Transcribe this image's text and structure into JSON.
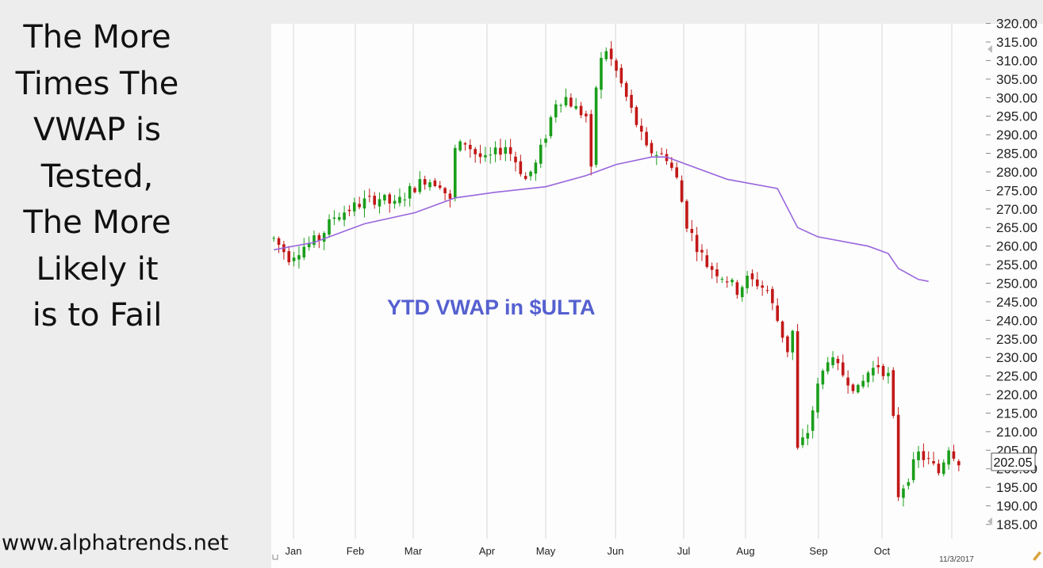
{
  "sidebar": {
    "headline_lines": [
      "The More",
      "Times The",
      "VWAP is",
      "Tested,",
      "The More",
      "Likely it",
      "is to Fail"
    ],
    "website": "www.alphatrends.net"
  },
  "chart_data": {
    "type": "candlestick",
    "annotation": "YTD VWAP in $ULTA",
    "ylim": [
      185,
      320
    ],
    "y_ticks": [
      185,
      190,
      195,
      200,
      205,
      210,
      215,
      220,
      225,
      230,
      235,
      240,
      245,
      250,
      255,
      260,
      265,
      270,
      275,
      280,
      285,
      290,
      295,
      300,
      305,
      310,
      315,
      320
    ],
    "x_labels": [
      "Jan",
      "Feb",
      "Mar",
      "Apr",
      "May",
      "Jun",
      "Jul",
      "Aug",
      "Sep",
      "Oct"
    ],
    "date_label": "11/3/2017",
    "last_price": "202.05",
    "colors": {
      "up": "#1a9e1a",
      "down": "#c21818",
      "vwap": "#9966dd",
      "annotation": "#5560d0"
    },
    "price_path": [
      [
        0,
        262
      ],
      [
        3,
        257
      ],
      [
        6,
        260
      ],
      [
        9,
        262
      ],
      [
        12,
        268
      ],
      [
        15,
        270
      ],
      [
        18,
        272
      ],
      [
        21,
        273
      ],
      [
        24,
        271
      ],
      [
        27,
        275
      ],
      [
        30,
        278
      ],
      [
        33,
        277
      ],
      [
        35,
        272
      ],
      [
        36,
        286
      ],
      [
        38,
        288
      ],
      [
        40,
        285
      ],
      [
        42,
        283
      ],
      [
        44,
        285
      ],
      [
        46,
        287
      ],
      [
        48,
        283
      ],
      [
        50,
        278
      ],
      [
        52,
        282
      ],
      [
        54,
        290
      ],
      [
        56,
        299
      ],
      [
        58,
        300
      ],
      [
        60,
        297
      ],
      [
        62,
        295
      ],
      [
        63,
        280
      ],
      [
        64,
        303
      ],
      [
        65,
        310
      ],
      [
        66,
        313
      ],
      [
        68,
        307
      ],
      [
        70,
        300
      ],
      [
        72,
        293
      ],
      [
        74,
        286
      ],
      [
        76,
        285
      ],
      [
        78,
        284
      ],
      [
        80,
        278
      ],
      [
        81,
        272
      ],
      [
        82,
        266
      ],
      [
        84,
        260
      ],
      [
        86,
        255
      ],
      [
        88,
        253
      ],
      [
        90,
        251
      ],
      [
        92,
        248
      ],
      [
        94,
        251
      ],
      [
        96,
        250
      ],
      [
        98,
        248
      ],
      [
        100,
        240
      ],
      [
        102,
        232
      ],
      [
        103,
        237
      ],
      [
        104,
        205
      ],
      [
        106,
        210
      ],
      [
        108,
        222
      ],
      [
        110,
        230
      ],
      [
        112,
        227
      ],
      [
        114,
        224
      ],
      [
        116,
        221
      ],
      [
        118,
        226
      ],
      [
        120,
        228
      ],
      [
        122,
        225
      ],
      [
        123,
        213
      ],
      [
        124,
        193
      ],
      [
        126,
        198
      ],
      [
        128,
        204
      ],
      [
        130,
        202
      ],
      [
        132,
        199
      ],
      [
        134,
        206
      ],
      [
        136,
        202
      ]
    ],
    "vwap_path": [
      [
        0,
        259
      ],
      [
        8,
        261
      ],
      [
        18,
        266
      ],
      [
        28,
        269
      ],
      [
        36,
        273
      ],
      [
        44,
        274.5
      ],
      [
        54,
        276
      ],
      [
        62,
        279
      ],
      [
        68,
        282
      ],
      [
        75,
        284
      ],
      [
        78,
        284
      ],
      [
        82,
        282
      ],
      [
        90,
        278
      ],
      [
        100,
        275.5
      ],
      [
        104,
        265
      ],
      [
        108,
        262.5
      ],
      [
        118,
        260
      ],
      [
        122,
        258
      ],
      [
        124,
        254
      ],
      [
        128,
        251
      ],
      [
        130,
        250.5
      ]
    ]
  }
}
